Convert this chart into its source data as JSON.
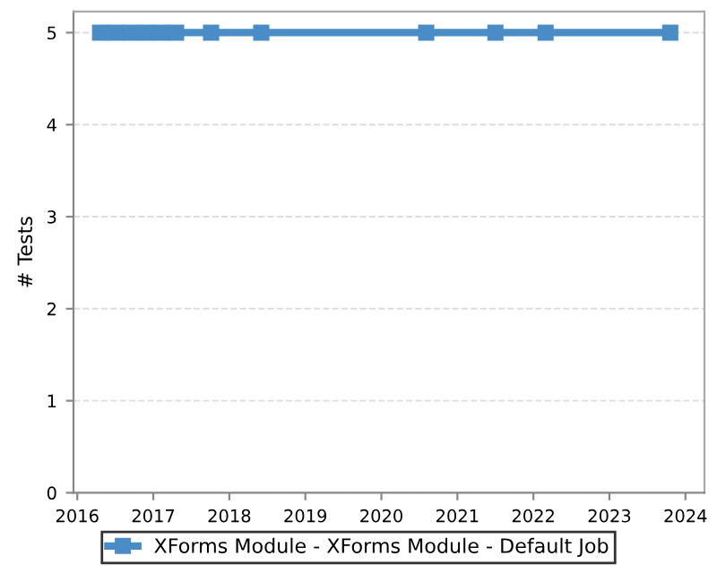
{
  "chart_data": {
    "type": "line",
    "ylabel": "# Tests",
    "x": [
      2016.3,
      2016.5,
      2016.7,
      2016.9,
      2017.1,
      2017.3,
      2017.76,
      2018.42,
      2020.59,
      2021.5,
      2022.16,
      2023.8
    ],
    "series": [
      {
        "name": "XForms Module - XForms Module - Default Job",
        "color": "#4a8cc6",
        "values": [
          5,
          5,
          5,
          5,
          5,
          5,
          5,
          5,
          5,
          5,
          5,
          5
        ]
      }
    ],
    "xlim": [
      2015.95,
      2024.25
    ],
    "xticks": [
      2016,
      2017,
      2018,
      2019,
      2020,
      2021,
      2022,
      2023,
      2024
    ],
    "ylim": [
      0,
      5.23
    ],
    "yticks": [
      0,
      1,
      2,
      3,
      4,
      5
    ],
    "grid": "y",
    "legend": "bottom",
    "marker": "square",
    "line_style": "solid"
  }
}
